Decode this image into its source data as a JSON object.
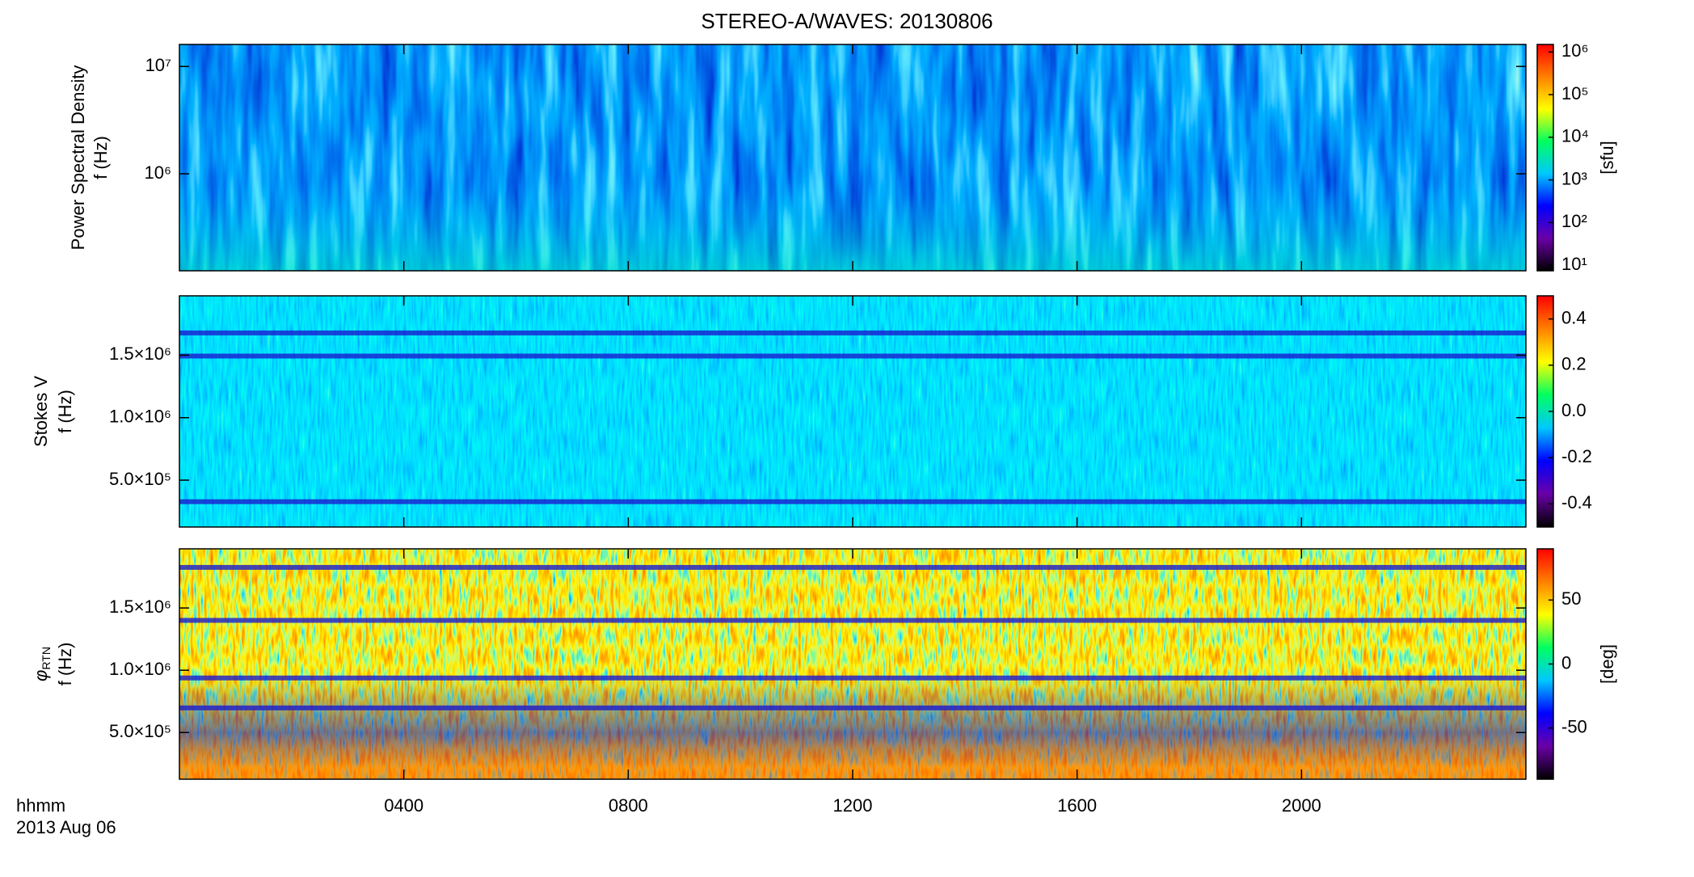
{
  "title": "STEREO-A/WAVES: 20130806",
  "x_axis": {
    "xlim": [
      0,
      24
    ],
    "xticks": [
      {
        "value": 4,
        "label": "0400"
      },
      {
        "value": 8,
        "label": "0800"
      },
      {
        "value": 12,
        "label": "1200"
      },
      {
        "value": 16,
        "label": "1600"
      },
      {
        "value": 20,
        "label": "2000"
      }
    ],
    "label": "hhmm",
    "date": "2013 Aug 06"
  },
  "chart_data": [
    {
      "type": "heatmap",
      "ylabel": "Power Spectral Density",
      "ylabel2": "f (Hz)",
      "log_y": true,
      "ylim": [
        125000,
        16025000
      ],
      "yticks": [
        {
          "value": 1000000,
          "label": "10⁶"
        },
        {
          "value": 10000000,
          "label": "10⁷"
        }
      ],
      "colorbar": {
        "log": true,
        "ylim": [
          7.4,
          1500000
        ],
        "label": "[sfu]",
        "ticks": [
          {
            "value": 10,
            "label": "10¹"
          },
          {
            "value": 100,
            "label": "10²"
          },
          {
            "value": 1000,
            "label": "10³"
          },
          {
            "value": 10000,
            "label": "10⁴"
          },
          {
            "value": 100000,
            "label": "10⁵"
          },
          {
            "value": 1000000,
            "label": "10⁶"
          }
        ],
        "colors": [
          "#000000",
          "#6a00a8",
          "#0000ff",
          "#00c8ff",
          "#00ff60",
          "#ffff00",
          "#ff8000",
          "#ff0000"
        ]
      }
    },
    {
      "type": "heatmap",
      "ylabel": "Stokes V",
      "ylabel2": "f (Hz)",
      "log_y": false,
      "ylim": [
        125000,
        1975000
      ],
      "yticks": [
        {
          "value": 500000,
          "label": "5.0×10⁵"
        },
        {
          "value": 1000000,
          "label": "1.0×10⁶"
        },
        {
          "value": 1500000,
          "label": "1.5×10⁶"
        }
      ],
      "colorbar": {
        "log": false,
        "ylim": [
          -0.5,
          0.5
        ],
        "ticks": [
          -0.4,
          -0.2,
          {
            "value": 0,
            "label": "0.0"
          },
          0.2,
          0.4
        ],
        "colors": [
          "#000000",
          "#6a00a8",
          "#0000ff",
          "#00c8ff",
          "#00ff60",
          "#ffff00",
          "#ff8000",
          "#ff0000"
        ]
      }
    },
    {
      "type": "heatmap",
      "ylabel_symbol": "φ",
      "ylabel_subscript": "RTN",
      "ylabel2": "f (Hz)",
      "log_y": false,
      "ylim": [
        125000,
        1975000
      ],
      "yticks": [
        {
          "value": 500000,
          "label": "5.0×10⁵"
        },
        {
          "value": 1000000,
          "label": "1.0×10⁶"
        },
        {
          "value": 1500000,
          "label": "1.5×10⁶"
        }
      ],
      "colorbar": {
        "log": false,
        "ylim": [
          -90,
          90
        ],
        "label": "[deg]",
        "ticks": [
          -50,
          0,
          50
        ],
        "colors": [
          "#000000",
          "#6a00a8",
          "#0000ff",
          "#00c8ff",
          "#00ff60",
          "#ffff00",
          "#ff8000",
          "#ff0000"
        ]
      }
    }
  ]
}
